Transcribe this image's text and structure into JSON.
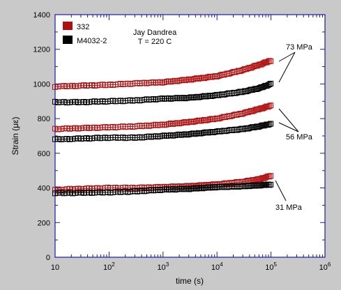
{
  "chart_data": {
    "type": "scatter",
    "xscale": "log",
    "xlim": [
      10,
      1000000
    ],
    "ylim": [
      0,
      1400
    ],
    "xlabel": "time (s)",
    "ylabel": "Strain (με)",
    "x_ticks": [
      10,
      100,
      1000,
      10000,
      100000,
      1000000
    ],
    "x_tick_labels": [
      {
        "base": "10",
        "exp": ""
      },
      {
        "base": "10",
        "exp": "2"
      },
      {
        "base": "10",
        "exp": "3"
      },
      {
        "base": "10",
        "exp": "4"
      },
      {
        "base": "10",
        "exp": "5"
      },
      {
        "base": "10",
        "exp": "6"
      }
    ],
    "y_ticks": [
      0,
      200,
      400,
      600,
      800,
      1000,
      1200,
      1400
    ],
    "y_tick_labels": [
      "0",
      "200",
      "400",
      "600",
      "800",
      "1000",
      "1200",
      "1400"
    ],
    "grid": false,
    "legend_position": "top-left",
    "legend": [
      {
        "name": "332",
        "color": "#b01010"
      },
      {
        "name": "M4032-2",
        "color": "#000000"
      }
    ],
    "annotation_lines": [
      "Jay Dandrea",
      "T = 220 C"
    ],
    "stress_labels": [
      "73 MPa",
      "56 MPa",
      "31 MPa"
    ],
    "series": [
      {
        "name": "332",
        "stress": "73 MPa",
        "color": "#b01010",
        "x": [
          10,
          30,
          100,
          300,
          1000,
          3000,
          10000,
          30000,
          60000,
          100000
        ],
        "y": [
          985,
          990,
          995,
          1003,
          1010,
          1025,
          1045,
          1080,
          1110,
          1135
        ]
      },
      {
        "name": "M4032-2",
        "stress": "73 MPa",
        "color": "#000000",
        "x": [
          10,
          30,
          100,
          300,
          1000,
          3000,
          10000,
          30000,
          60000,
          100000
        ],
        "y": [
          895,
          895,
          900,
          905,
          915,
          920,
          935,
          955,
          975,
          1000
        ]
      },
      {
        "name": "332",
        "stress": "56 MPa",
        "color": "#b01010",
        "x": [
          10,
          30,
          100,
          300,
          1000,
          3000,
          10000,
          30000,
          60000,
          100000
        ],
        "y": [
          740,
          745,
          750,
          755,
          765,
          780,
          800,
          830,
          855,
          875
        ]
      },
      {
        "name": "M4032-2",
        "stress": "56 MPa",
        "color": "#000000",
        "x": [
          10,
          30,
          100,
          300,
          1000,
          3000,
          10000,
          30000,
          60000,
          100000
        ],
        "y": [
          680,
          685,
          690,
          690,
          700,
          710,
          725,
          740,
          755,
          770
        ]
      },
      {
        "name": "332",
        "stress": "31 MPa",
        "color": "#b01010",
        "x": [
          10,
          30,
          100,
          300,
          1000,
          3000,
          10000,
          30000,
          60000,
          100000
        ],
        "y": [
          390,
          395,
          400,
          400,
          405,
          410,
          420,
          435,
          450,
          470
        ]
      },
      {
        "name": "M4032-2",
        "stress": "31 MPa",
        "color": "#000000",
        "x": [
          10,
          30,
          100,
          300,
          1000,
          3000,
          10000,
          30000,
          60000,
          100000
        ],
        "y": [
          370,
          372,
          375,
          380,
          390,
          395,
          405,
          410,
          415,
          420
        ]
      }
    ]
  }
}
